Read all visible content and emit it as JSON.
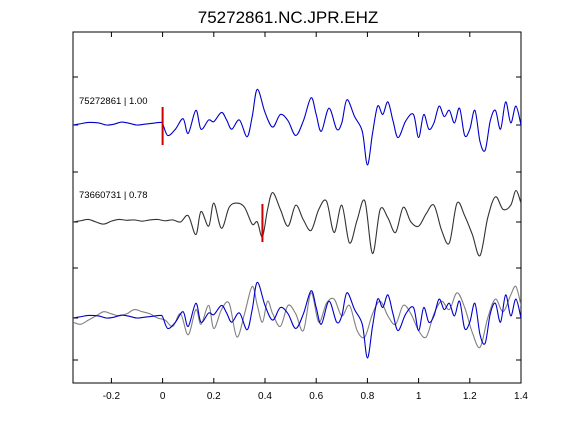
{
  "chart_data": {
    "type": "line",
    "title": "75272861.NC.JPR.EHZ",
    "xlabel": "",
    "ylabel": "",
    "xlim": [
      -0.35,
      1.4
    ],
    "x_ticks": [
      -0.2,
      0,
      0.2,
      0.4,
      0.6,
      0.8,
      1,
      1.2,
      1.4
    ],
    "x_tick_labels": [
      "-0.2",
      "0",
      "0.2",
      "0.4",
      "0.6",
      "0.8",
      "1",
      "1.2",
      "1.4"
    ],
    "grid": false,
    "legend": "none",
    "colors": {
      "master": "#0000cc",
      "match": "#333333",
      "match_overlay": "#808080",
      "pick": "#cc0000"
    },
    "panels": [
      {
        "label": "75272861 | 1.00",
        "pick_time": 0.0,
        "series": [
          {
            "role": "master",
            "x": [
              -0.35,
              -0.32,
              -0.29,
              -0.25,
              -0.22,
              -0.19,
              -0.16,
              -0.13,
              -0.1,
              -0.07,
              -0.04,
              -0.01,
              0.0,
              0.02,
              0.05,
              0.08,
              0.1,
              0.13,
              0.15,
              0.18,
              0.2,
              0.23,
              0.25,
              0.27,
              0.3,
              0.33,
              0.35,
              0.37,
              0.4,
              0.43,
              0.46,
              0.49,
              0.52,
              0.55,
              0.58,
              0.6,
              0.62,
              0.65,
              0.68,
              0.7,
              0.72,
              0.75,
              0.78,
              0.8,
              0.82,
              0.84,
              0.86,
              0.88,
              0.9,
              0.92,
              0.95,
              0.98,
              1.0,
              1.02,
              1.04,
              1.06,
              1.08,
              1.1,
              1.12,
              1.14,
              1.16,
              1.18,
              1.2,
              1.22,
              1.24,
              1.26,
              1.28,
              1.3,
              1.32,
              1.34,
              1.36,
              1.38,
              1.4
            ],
            "y": [
              0.0,
              0.03,
              0.06,
              0.05,
              0.0,
              0.02,
              0.07,
              0.04,
              0.0,
              0.02,
              0.04,
              0.06,
              0.03,
              -0.25,
              -0.1,
              0.15,
              -0.2,
              0.35,
              -0.1,
              0.12,
              0.08,
              0.3,
              0.12,
              -0.1,
              0.12,
              -0.28,
              0.2,
              0.85,
              0.3,
              -0.05,
              0.25,
              0.1,
              -0.25,
              0.1,
              0.65,
              0.25,
              -0.15,
              0.4,
              -0.1,
              0.05,
              0.6,
              0.2,
              -0.15,
              -0.95,
              -0.2,
              0.45,
              0.25,
              0.55,
              0.1,
              -0.3,
              0.1,
              0.25,
              -0.3,
              0.25,
              -0.1,
              0.05,
              0.45,
              0.2,
              0.35,
              0.05,
              0.4,
              -0.25,
              -0.1,
              0.35,
              -0.4,
              -0.6,
              0.1,
              0.35,
              -0.1,
              0.55,
              0.05,
              0.45,
              0.0
            ]
          }
        ]
      },
      {
        "label": "73660731 | 0.78",
        "pick_time": 0.39,
        "series": [
          {
            "role": "match",
            "x": [
              -0.35,
              -0.32,
              -0.29,
              -0.26,
              -0.23,
              -0.2,
              -0.17,
              -0.14,
              -0.11,
              -0.08,
              -0.05,
              -0.02,
              0.01,
              0.04,
              0.07,
              0.1,
              0.13,
              0.15,
              0.18,
              0.2,
              0.23,
              0.26,
              0.29,
              0.32,
              0.35,
              0.37,
              0.39,
              0.41,
              0.43,
              0.46,
              0.49,
              0.52,
              0.55,
              0.58,
              0.61,
              0.64,
              0.67,
              0.7,
              0.73,
              0.76,
              0.79,
              0.82,
              0.85,
              0.88,
              0.91,
              0.94,
              0.97,
              1.0,
              1.03,
              1.06,
              1.09,
              1.12,
              1.15,
              1.18,
              1.21,
              1.24,
              1.27,
              1.3,
              1.33,
              1.36,
              1.38,
              1.4
            ],
            "y": [
              0.0,
              0.03,
              0.06,
              0.0,
              -0.05,
              0.02,
              0.06,
              0.04,
              0.05,
              0.02,
              0.05,
              0.06,
              0.03,
              0.05,
              0.0,
              0.15,
              -0.3,
              0.25,
              -0.1,
              0.45,
              -0.15,
              0.35,
              0.45,
              0.35,
              -0.05,
              0.0,
              -0.35,
              0.3,
              0.7,
              0.3,
              -0.1,
              0.4,
              0.05,
              -0.2,
              0.3,
              0.5,
              -0.25,
              0.4,
              -0.5,
              0.05,
              0.5,
              -0.75,
              0.3,
              0.1,
              -0.25,
              0.35,
              0.0,
              -0.1,
              0.2,
              0.4,
              -0.2,
              -0.5,
              0.45,
              0.15,
              -0.3,
              -0.8,
              0.1,
              0.6,
              0.3,
              0.4,
              0.75,
              0.45
            ]
          }
        ]
      },
      {
        "label": "",
        "series": [
          {
            "role": "match_overlay",
            "x": [
              -0.35,
              -0.32,
              -0.29,
              -0.26,
              -0.23,
              -0.2,
              -0.17,
              -0.14,
              -0.11,
              -0.08,
              -0.05,
              -0.02,
              0.01,
              0.04,
              0.07,
              0.1,
              0.13,
              0.15,
              0.18,
              0.2,
              0.23,
              0.26,
              0.29,
              0.32,
              0.35,
              0.37,
              0.39,
              0.41,
              0.43,
              0.46,
              0.49,
              0.52,
              0.55,
              0.58,
              0.61,
              0.64,
              0.67,
              0.7,
              0.73,
              0.76,
              0.79,
              0.82,
              0.85,
              0.88,
              0.91,
              0.94,
              0.97,
              1.0,
              1.03,
              1.06,
              1.09,
              1.12,
              1.15,
              1.18,
              1.21,
              1.24,
              1.27,
              1.3,
              1.33,
              1.36,
              1.38,
              1.4
            ],
            "y": [
              -0.1,
              -0.15,
              -0.05,
              0.05,
              0.15,
              0.1,
              0.05,
              0.1,
              0.2,
              0.15,
              0.1,
              0.0,
              -0.05,
              -0.2,
              0.1,
              -0.4,
              0.2,
              -0.15,
              0.3,
              -0.25,
              0.2,
              0.35,
              -0.45,
              0.1,
              0.75,
              0.3,
              -0.1,
              0.4,
              0.1,
              -0.2,
              0.3,
              0.1,
              -0.3,
              0.6,
              -0.1,
              0.35,
              0.45,
              0.05,
              0.3,
              -0.3,
              -0.45,
              0.1,
              0.4,
              0.05,
              -0.15,
              0.3,
              0.1,
              -0.3,
              -0.45,
              0.1,
              0.4,
              0.2,
              0.6,
              0.25,
              -0.35,
              -0.7,
              0.0,
              0.45,
              0.15,
              0.55,
              0.75,
              0.3
            ]
          },
          {
            "role": "master",
            "x": [
              -0.35,
              -0.32,
              -0.29,
              -0.25,
              -0.22,
              -0.19,
              -0.16,
              -0.13,
              -0.1,
              -0.07,
              -0.04,
              -0.01,
              0.0,
              0.02,
              0.05,
              0.08,
              0.1,
              0.13,
              0.15,
              0.18,
              0.2,
              0.23,
              0.25,
              0.27,
              0.3,
              0.33,
              0.35,
              0.37,
              0.4,
              0.43,
              0.46,
              0.49,
              0.52,
              0.55,
              0.58,
              0.6,
              0.62,
              0.65,
              0.68,
              0.7,
              0.72,
              0.75,
              0.78,
              0.8,
              0.82,
              0.84,
              0.86,
              0.88,
              0.9,
              0.92,
              0.95,
              0.98,
              1.0,
              1.02,
              1.04,
              1.06,
              1.08,
              1.1,
              1.12,
              1.14,
              1.16,
              1.18,
              1.2,
              1.22,
              1.24,
              1.26,
              1.28,
              1.3,
              1.32,
              1.34,
              1.36,
              1.38,
              1.4
            ],
            "y": [
              0.0,
              0.03,
              0.06,
              0.05,
              0.0,
              0.02,
              0.07,
              0.04,
              0.0,
              0.02,
              0.04,
              0.06,
              0.03,
              -0.25,
              -0.1,
              0.15,
              -0.2,
              0.35,
              -0.1,
              0.12,
              0.08,
              0.3,
              0.12,
              -0.1,
              0.12,
              -0.28,
              0.2,
              0.85,
              0.3,
              -0.05,
              0.25,
              0.1,
              -0.25,
              0.1,
              0.65,
              0.25,
              -0.15,
              0.4,
              -0.1,
              0.05,
              0.6,
              0.2,
              -0.15,
              -0.95,
              -0.2,
              0.45,
              0.25,
              0.55,
              0.1,
              -0.3,
              0.1,
              0.25,
              -0.3,
              0.25,
              -0.1,
              0.05,
              0.45,
              0.2,
              0.35,
              0.05,
              0.4,
              -0.25,
              -0.1,
              0.35,
              -0.4,
              -0.6,
              0.1,
              0.35,
              -0.1,
              0.55,
              0.05,
              0.45,
              0.0
            ]
          }
        ]
      }
    ]
  }
}
